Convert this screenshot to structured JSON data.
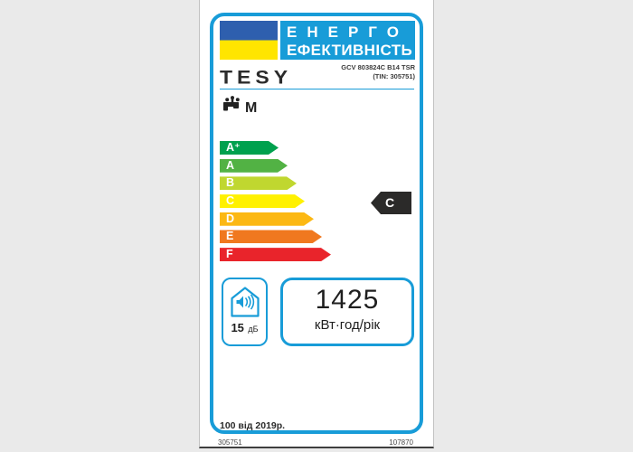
{
  "header": {
    "title_line1": "ЕНЕРГО",
    "title_line2": "ЕФЕКТИВНІСТЬ",
    "accent_color": "#189CD8",
    "flag": {
      "top_color": "#2E5FAE",
      "bottom_color": "#FFE500"
    }
  },
  "brand": "TESY",
  "model": {
    "line1": "GCV 803824C B14 TSR",
    "line2": "(TIN: 305751)"
  },
  "load_profile": "M",
  "rating": {
    "value": "C",
    "scale": [
      {
        "label": "A⁺",
        "color": "#00A14E",
        "width": 65
      },
      {
        "label": "A",
        "color": "#52B244",
        "width": 75
      },
      {
        "label": "B",
        "color": "#C0D72F",
        "width": 85
      },
      {
        "label": "C",
        "color": "#FFF101",
        "width": 94
      },
      {
        "label": "D",
        "color": "#FCB813",
        "width": 104
      },
      {
        "label": "E",
        "color": "#F0781F",
        "width": 113
      },
      {
        "label": "F",
        "color": "#E9242B",
        "width": 123
      }
    ]
  },
  "noise": {
    "value": "15",
    "unit": "дБ"
  },
  "energy": {
    "value": "1425",
    "unit": "кВт·год/рік"
  },
  "footer": {
    "note": "100 від 2019р.",
    "left_id": "305751",
    "right_id": "107870"
  }
}
